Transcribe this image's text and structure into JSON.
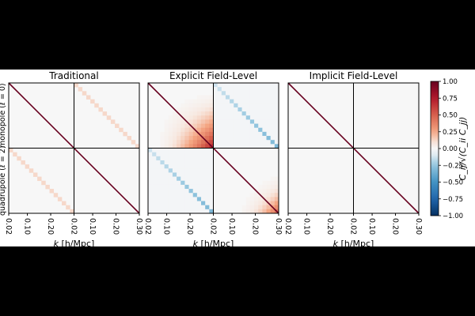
{
  "chart_data": {
    "type": "heatmap",
    "panels": [
      {
        "title": "Traditional",
        "pattern": "traditional"
      },
      {
        "title": "Explicit Field-Level",
        "pattern": "explicit"
      },
      {
        "title": "Implicit Field-Level",
        "pattern": "implicit"
      }
    ],
    "row_labels": [
      "monopole (ℓ = 0)",
      "quadrupole (ℓ = 2)"
    ],
    "x_tick_labels": [
      "0.02",
      "0.10",
      "0.20",
      "0.02",
      "0.10",
      "0.20",
      "0.30"
    ],
    "k_ticks": [
      0.02,
      0.1,
      0.2,
      0.3
    ],
    "k_range": [
      0.02,
      0.3
    ],
    "xlabel": "k [h/Mpc]",
    "colorbar": {
      "label": "C_ij/√(C_ii C_jj)",
      "ticks": [
        "1.00",
        "0.75",
        "0.50",
        "0.25",
        "0.00",
        "−0.25",
        "−0.50",
        "−0.75",
        "−1.00"
      ],
      "range": [
        -1,
        1
      ],
      "colormap": "RdBu_r"
    }
  }
}
